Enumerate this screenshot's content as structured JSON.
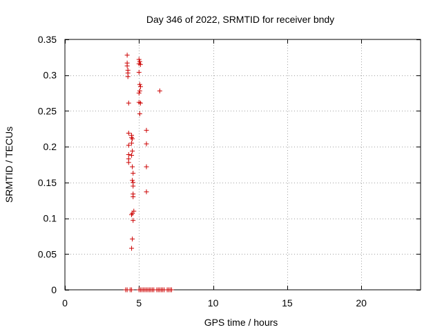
{
  "chart_data": {
    "type": "scatter",
    "title": "Day 346 of 2022, SRMTID for receiver bndy",
    "xlabel": "GPS time / hours",
    "ylabel": "SRMTID / TECUs",
    "xlim": [
      0,
      24
    ],
    "ylim": [
      0,
      0.35
    ],
    "xticks": [
      0,
      5,
      10,
      15,
      20
    ],
    "xtick_labels": [
      "0",
      "5",
      "10",
      "15",
      "20"
    ],
    "yticks": [
      0,
      0.05,
      0.1,
      0.15,
      0.2,
      0.25,
      0.3,
      0.35
    ],
    "ytick_labels": [
      "0",
      "0.05",
      "0.1",
      "0.15",
      "0.2",
      "0.25",
      "0.3",
      "0.35"
    ],
    "grid": true,
    "marker": "plus",
    "color": "#cc0000",
    "series": [
      {
        "name": "SRMTID",
        "points": [
          [
            4.2,
            0.328
          ],
          [
            4.2,
            0.317
          ],
          [
            4.2,
            0.313
          ],
          [
            4.25,
            0.307
          ],
          [
            4.25,
            0.303
          ],
          [
            4.25,
            0.298
          ],
          [
            4.3,
            0.261
          ],
          [
            4.3,
            0.219
          ],
          [
            4.3,
            0.202
          ],
          [
            4.3,
            0.189
          ],
          [
            4.3,
            0.183
          ],
          [
            4.3,
            0.178
          ],
          [
            4.5,
            0.216
          ],
          [
            4.5,
            0.213
          ],
          [
            4.55,
            0.211
          ],
          [
            4.5,
            0.205
          ],
          [
            4.55,
            0.194
          ],
          [
            4.5,
            0.188
          ],
          [
            4.55,
            0.172
          ],
          [
            4.6,
            0.163
          ],
          [
            4.55,
            0.153
          ],
          [
            4.6,
            0.15
          ],
          [
            4.6,
            0.145
          ],
          [
            4.6,
            0.134
          ],
          [
            4.6,
            0.13
          ],
          [
            4.65,
            0.11
          ],
          [
            4.55,
            0.107
          ],
          [
            4.5,
            0.105
          ],
          [
            4.6,
            0.097
          ],
          [
            4.55,
            0.071
          ],
          [
            4.5,
            0.058
          ],
          [
            5.0,
            0.322
          ],
          [
            5.05,
            0.319
          ],
          [
            5.0,
            0.316
          ],
          [
            5.1,
            0.315
          ],
          [
            5.0,
            0.304
          ],
          [
            5.05,
            0.287
          ],
          [
            5.1,
            0.284
          ],
          [
            5.05,
            0.278
          ],
          [
            5.0,
            0.275
          ],
          [
            5.0,
            0.262
          ],
          [
            5.1,
            0.261
          ],
          [
            5.05,
            0.246
          ],
          [
            6.4,
            0.278
          ],
          [
            5.5,
            0.223
          ],
          [
            5.5,
            0.204
          ],
          [
            5.5,
            0.172
          ],
          [
            5.5,
            0.137
          ],
          [
            4.1,
            0
          ],
          [
            4.2,
            0
          ],
          [
            4.4,
            0
          ],
          [
            4.5,
            0
          ],
          [
            5.0,
            0
          ],
          [
            5.1,
            0
          ],
          [
            5.2,
            0
          ],
          [
            5.3,
            0
          ],
          [
            5.4,
            0
          ],
          [
            5.5,
            0
          ],
          [
            5.6,
            0
          ],
          [
            5.7,
            0
          ],
          [
            5.8,
            0
          ],
          [
            5.9,
            0
          ],
          [
            6.0,
            0
          ],
          [
            6.2,
            0
          ],
          [
            6.3,
            0
          ],
          [
            6.4,
            0
          ],
          [
            6.5,
            0
          ],
          [
            6.6,
            0
          ],
          [
            6.7,
            0
          ],
          [
            6.9,
            0
          ],
          [
            7.0,
            0
          ],
          [
            7.1,
            0
          ],
          [
            7.2,
            0
          ]
        ]
      }
    ]
  }
}
